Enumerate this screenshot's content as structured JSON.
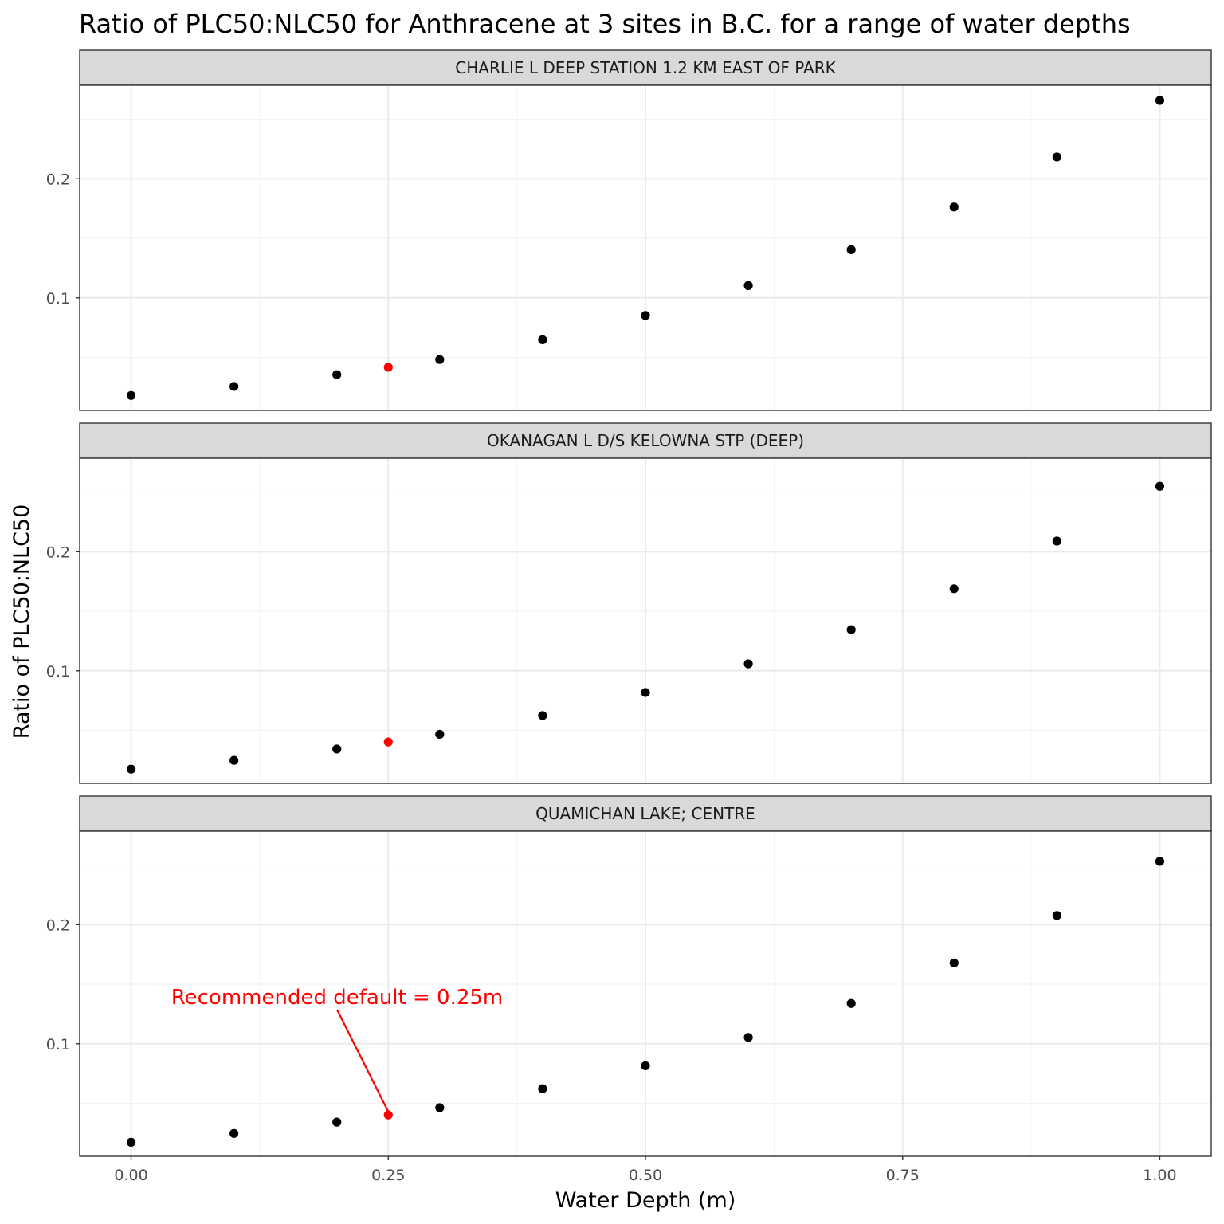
{
  "chart_data": {
    "type": "scatter",
    "title": "Ratio of PLC50:NLC50 for Anthracene at 3 sites in B.C. for a range of water depths",
    "xlabel": "Water Depth (m)",
    "ylabel": "Ratio of PLC50:NLC50",
    "xlim": [
      -0.05,
      1.05
    ],
    "ylim": [
      0.0055,
      0.2785
    ],
    "x_ticks": [
      0.0,
      0.25,
      0.5,
      0.75,
      1.0
    ],
    "x_tick_labels": [
      "0.00",
      "0.25",
      "0.50",
      "0.75",
      "1.00"
    ],
    "y_ticks": [
      0.1,
      0.2
    ],
    "y_tick_labels": [
      "0.1",
      "0.2"
    ],
    "grid": true,
    "point_color": "#000000",
    "highlight_color": "#ff0000",
    "highlight_x": 0.25,
    "panels": [
      {
        "name": "CHARLIE L DEEP STATION 1.2 KM EAST OF PARK",
        "x": [
          0.0,
          0.1,
          0.2,
          0.25,
          0.3,
          0.4,
          0.5,
          0.6,
          0.7,
          0.8,
          0.9,
          1.0
        ],
        "y": [
          0.018,
          0.0256,
          0.0355,
          0.0417,
          0.0482,
          0.0648,
          0.0852,
          0.1103,
          0.1404,
          0.1763,
          0.2183,
          0.2658
        ]
      },
      {
        "name": "OKANAGAN L D/S KELOWNA STP (DEEP)",
        "x": [
          0.0,
          0.1,
          0.2,
          0.25,
          0.3,
          0.4,
          0.5,
          0.6,
          0.7,
          0.8,
          0.9,
          1.0
        ],
        "y": [
          0.0174,
          0.0248,
          0.0343,
          0.0402,
          0.0467,
          0.0624,
          0.0818,
          0.1058,
          0.1345,
          0.1689,
          0.2089,
          0.2549
        ]
      },
      {
        "name": "QUAMICHAN LAKE; CENTRE",
        "x": [
          0.0,
          0.1,
          0.2,
          0.25,
          0.3,
          0.4,
          0.5,
          0.6,
          0.7,
          0.8,
          0.9,
          1.0
        ],
        "y": [
          0.0173,
          0.0247,
          0.0342,
          0.0402,
          0.0463,
          0.0622,
          0.0815,
          0.1053,
          0.1338,
          0.1679,
          0.2077,
          0.2531
        ]
      }
    ],
    "annotation": {
      "text": "Recommended default = 0.25m",
      "panel": 2,
      "x": 0.25
    }
  }
}
